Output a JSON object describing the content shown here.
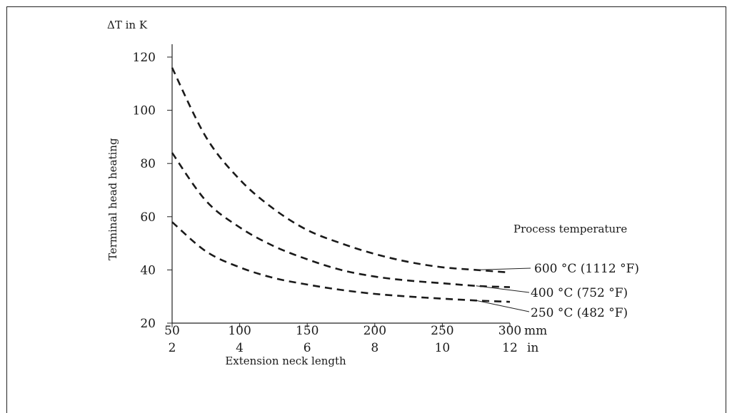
{
  "chart_data": {
    "type": "line",
    "title": "",
    "y_unit_label": "ΔT in K",
    "ylabel": "Terminal head heating",
    "xlabel": "Extension neck length",
    "x_unit_mm": "mm",
    "x_unit_in": "in",
    "xlim": [
      50,
      300
    ],
    "ylim": [
      20,
      120
    ],
    "x_ticks": [
      50,
      100,
      150,
      200,
      250,
      300
    ],
    "x_tick_labels_mm": [
      "50",
      "100",
      "150",
      "200",
      "250",
      "300"
    ],
    "x_tick_labels_in": [
      "2",
      "4",
      "6",
      "8",
      "10",
      "12"
    ],
    "y_ticks": [
      20,
      40,
      60,
      80,
      100,
      120
    ],
    "y_tick_labels": [
      "20",
      "40",
      "60",
      "80",
      "100",
      "120"
    ],
    "legend_title": "Process temperature",
    "line_style": "dashed",
    "grid": false,
    "series": [
      {
        "name": "600 °C (1112 °F)",
        "x": [
          50,
          75,
          100,
          125,
          150,
          175,
          200,
          225,
          250,
          275,
          300
        ],
        "y": [
          116,
          90,
          74,
          63,
          55,
          50,
          46,
          43,
          41,
          40,
          39
        ]
      },
      {
        "name": "400 °C (752 °F)",
        "x": [
          50,
          75,
          100,
          125,
          150,
          175,
          200,
          225,
          250,
          275,
          300
        ],
        "y": [
          84,
          66,
          56,
          49,
          44,
          40,
          37.5,
          36,
          35,
          34,
          33.5
        ]
      },
      {
        "name": "250 °C (482 °F)",
        "x": [
          50,
          75,
          100,
          125,
          150,
          175,
          200,
          225,
          250,
          275,
          300
        ],
        "y": [
          58,
          47,
          41,
          37,
          34.5,
          32.5,
          31,
          30,
          29.2,
          28.5,
          28
        ]
      }
    ]
  }
}
